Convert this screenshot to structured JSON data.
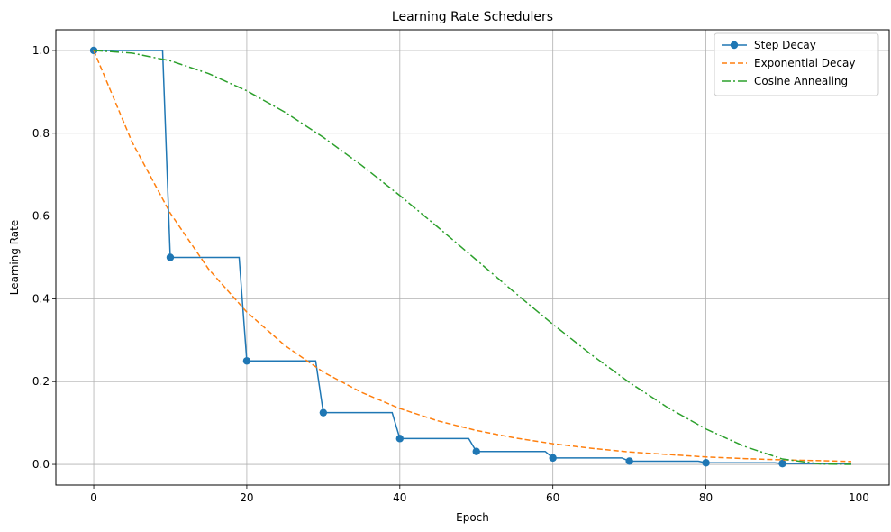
{
  "chart_data": {
    "type": "line",
    "title": "Learning Rate Schedulers",
    "xlabel": "Epoch",
    "ylabel": "Learning Rate",
    "xlim": [
      -4.95,
      103.95
    ],
    "ylim": [
      -0.05,
      1.05
    ],
    "x_ticks": [
      0,
      20,
      40,
      60,
      80,
      100
    ],
    "x_tick_labels": [
      "0",
      "20",
      "40",
      "60",
      "80",
      "100"
    ],
    "y_ticks": [
      0.0,
      0.2,
      0.4,
      0.6,
      0.8,
      1.0
    ],
    "y_tick_labels": [
      "0.0",
      "0.2",
      "0.4",
      "0.6",
      "0.8",
      "1.0"
    ],
    "grid": true,
    "legend_position": "top-right",
    "series": [
      {
        "name": "Step Decay",
        "color": "#1f77b4",
        "style": "solid",
        "marker": "circle",
        "x": [
          0,
          9,
          10,
          19,
          20,
          29,
          30,
          39,
          40,
          49,
          50,
          59,
          60,
          69,
          70,
          79,
          80,
          89,
          90,
          99
        ],
        "y": [
          1.0,
          1.0,
          0.5,
          0.5,
          0.25,
          0.25,
          0.125,
          0.125,
          0.0625,
          0.0625,
          0.03125,
          0.03125,
          0.015625,
          0.015625,
          0.0078,
          0.0078,
          0.0039,
          0.0039,
          0.002,
          0.002
        ],
        "marker_x": [
          0,
          10,
          20,
          30,
          40,
          50,
          60,
          70,
          80,
          90
        ],
        "marker_y": [
          1.0,
          0.5,
          0.25,
          0.125,
          0.0625,
          0.03125,
          0.015625,
          0.0078,
          0.0039,
          0.002
        ]
      },
      {
        "name": "Exponential Decay",
        "color": "#ff7f0e",
        "style": "dashed",
        "marker": "none",
        "x": [
          0,
          5,
          10,
          15,
          20,
          25,
          30,
          35,
          40,
          45,
          50,
          55,
          60,
          65,
          70,
          75,
          80,
          85,
          90,
          95,
          99
        ],
        "y": [
          1.0,
          0.779,
          0.607,
          0.472,
          0.368,
          0.287,
          0.223,
          0.174,
          0.135,
          0.105,
          0.082,
          0.064,
          0.05,
          0.039,
          0.03,
          0.024,
          0.018,
          0.014,
          0.011,
          0.009,
          0.007
        ]
      },
      {
        "name": "Cosine Annealing",
        "color": "#2ca02c",
        "style": "dashdot",
        "marker": "none",
        "x": [
          0,
          5,
          10,
          15,
          20,
          25,
          30,
          35,
          40,
          45,
          50,
          55,
          60,
          65,
          70,
          75,
          80,
          85,
          90,
          95,
          99
        ],
        "y": [
          1.0,
          0.9937,
          0.975,
          0.9443,
          0.9025,
          0.8507,
          0.7902,
          0.7226,
          0.6495,
          0.5727,
          0.494,
          0.4154,
          0.3386,
          0.2655,
          0.1979,
          0.1374,
          0.0856,
          0.0439,
          0.0131,
          0.0008,
          0.0
        ]
      }
    ]
  }
}
